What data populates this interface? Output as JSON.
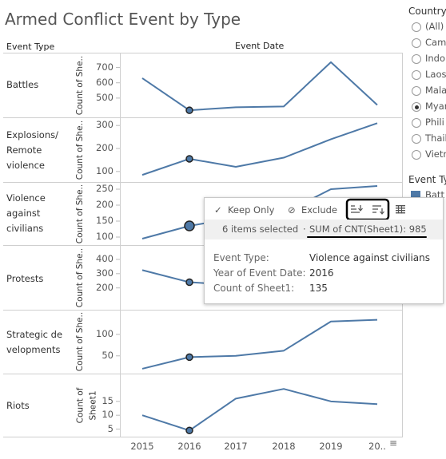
{
  "title": "Armed Conflict Event by Type",
  "header": {
    "event_type": "Event Type",
    "event_date": "Event Date"
  },
  "legend": {
    "country_title": "Country",
    "country_options": [
      {
        "label": "(All)",
        "selected": false
      },
      {
        "label": "Camb",
        "selected": false
      },
      {
        "label": "Indo",
        "selected": false
      },
      {
        "label": "Laos",
        "selected": false
      },
      {
        "label": "Mala",
        "selected": false
      },
      {
        "label": "Myan",
        "selected": true
      },
      {
        "label": "Phili",
        "selected": false
      },
      {
        "label": "Thail",
        "selected": false
      },
      {
        "label": "Vietn",
        "selected": false
      }
    ],
    "event_type_title": "Event Ty",
    "event_type_first": "Batt",
    "swatch_color": "#4e79a7"
  },
  "tooltip": {
    "keep_only": "Keep Only",
    "exclude": "Exclude",
    "selected_text": "6 items selected",
    "sum_text": "SUM of CNT(Sheet1): 985",
    "rows": [
      {
        "key": "Event Type:",
        "value": "Violence against civilians"
      },
      {
        "key": "Year of Event Date:",
        "value": "2016"
      },
      {
        "key": "Count of Sheet1:",
        "value": "135"
      }
    ]
  },
  "chart_data": {
    "type": "line",
    "x": [
      "2015",
      "2016",
      "2017",
      "2018",
      "2019",
      "20.."
    ],
    "xlabel": "Event Date",
    "line_color": "#4e79a7",
    "series": [
      {
        "name": "Battles",
        "label_lines": [
          "Battles"
        ],
        "ylabel": "Count of She..",
        "values": [
          630,
          420,
          440,
          445,
          735,
          455
        ],
        "ticks": [
          500,
          600,
          700
        ],
        "ylim": [
          400,
          750
        ]
      },
      {
        "name": "Explosions/Remote violence",
        "label_lines": [
          "Explosions/",
          "Remote",
          "violence"
        ],
        "ylabel": "Count of She..",
        "values": [
          85,
          155,
          120,
          160,
          240,
          310
        ],
        "ticks": [
          100,
          200,
          300
        ],
        "ylim": [
          75,
          325
        ]
      },
      {
        "name": "Violence against civilians",
        "label_lines": [
          "Violence",
          "against",
          "civilians"
        ],
        "ylabel": "Count of She..",
        "values": [
          95,
          135,
          160,
          175,
          250,
          260
        ],
        "ticks": [
          100,
          150,
          200,
          250
        ],
        "ylim": [
          85,
          265
        ]
      },
      {
        "name": "Protests",
        "label_lines": [
          "Protests"
        ],
        "ylabel": "Count of She..",
        "values": [
          325,
          240,
          220,
          210,
          200,
          120
        ],
        "ticks": [
          200,
          300,
          400
        ],
        "ylim": [
          120,
          450
        ]
      },
      {
        "name": "Strategic developments",
        "label_lines": [
          "Strategic de",
          "velopments"
        ],
        "ylabel": "Count of She..",
        "values": [
          20,
          47,
          50,
          62,
          130,
          134
        ],
        "ticks": [
          50,
          100
        ],
        "ylim": [
          18,
          150
        ]
      },
      {
        "name": "Riots",
        "label_lines": [
          "Riots"
        ],
        "ylabel_lines": [
          "Count of",
          "Sheet1"
        ],
        "values": [
          10,
          4.5,
          16,
          19.5,
          15,
          14
        ],
        "ticks": [
          5,
          10,
          15
        ],
        "ylim": [
          4,
          21
        ]
      }
    ],
    "highlight_index": 1
  }
}
